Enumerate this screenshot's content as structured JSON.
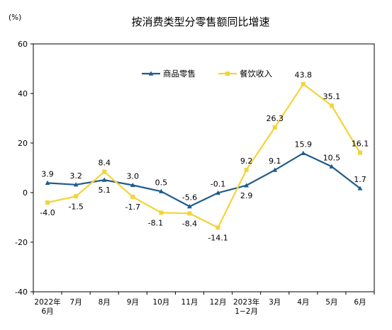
{
  "chart_data": {
    "type": "line",
    "title": "按消费类型分零售额同比增速",
    "unit": "(%)",
    "categories": [
      [
        "2022年",
        "6月"
      ],
      [
        "7月"
      ],
      [
        "8月"
      ],
      [
        "9月"
      ],
      [
        "10月"
      ],
      [
        "11月"
      ],
      [
        "12月"
      ],
      [
        "2023年",
        "1−2月"
      ],
      [
        "3月"
      ],
      [
        "4月"
      ],
      [
        "5月"
      ],
      [
        "6月"
      ]
    ],
    "ylim": [
      -40,
      60
    ],
    "yticks": [
      "60",
      "40",
      "20",
      "0",
      "-20",
      "-40"
    ],
    "ytick_values": [
      60,
      40,
      20,
      0,
      -20,
      -40
    ],
    "grid": false,
    "legend_position": "top",
    "series": [
      {
        "name": "商品零售",
        "color": "#1f5c8b",
        "marker": "triangle",
        "values": [
          3.9,
          3.2,
          5.1,
          3.0,
          0.5,
          -5.6,
          -0.1,
          2.9,
          9.1,
          15.9,
          10.5,
          1.7
        ],
        "labels": [
          "3.9",
          "3.2",
          "5.1",
          "3.0",
          "0.5",
          "-5.6",
          "-0.1",
          "2.9",
          "9.1",
          "15.9",
          "10.5",
          "1.7"
        ]
      },
      {
        "name": "餐饮收入",
        "color": "#f2d43a",
        "marker": "square",
        "values": [
          -4.0,
          -1.5,
          8.4,
          -1.7,
          -8.1,
          -8.4,
          -14.1,
          9.2,
          26.3,
          43.8,
          35.1,
          16.1
        ],
        "labels": [
          "-4.0",
          "-1.5",
          "8.4",
          "-1.7",
          "-8.1",
          "-8.4",
          "-14.1",
          "9.2",
          "26.3",
          "43.8",
          "35.1",
          "16.1"
        ]
      }
    ]
  }
}
